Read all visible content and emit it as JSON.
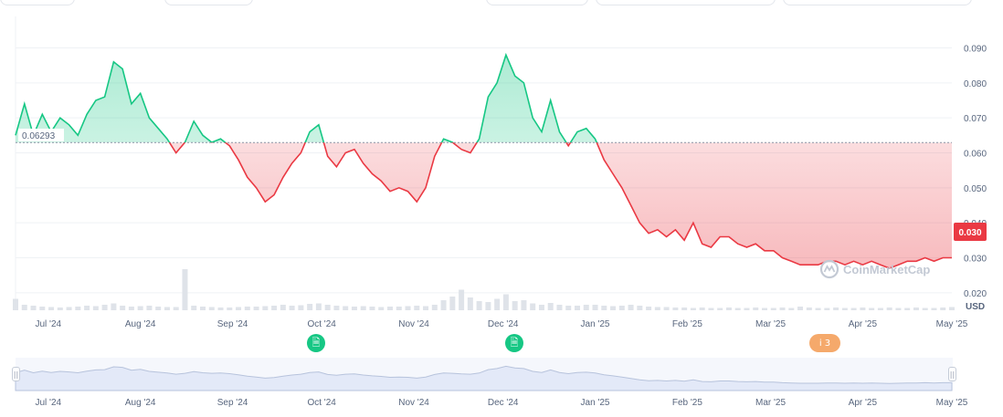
{
  "chart_data": {
    "type": "area",
    "currency": "USD",
    "baseline_label": "0.06293",
    "baseline": 0.06293,
    "current_price_label": "0.030",
    "current_price": 0.03,
    "ylim": [
      0.015,
      0.099
    ],
    "y_ticks": [
      "0.090",
      "0.080",
      "0.070",
      "0.060",
      "0.050",
      "0.040",
      "0.030",
      "0.020"
    ],
    "y_tick_values": [
      0.09,
      0.08,
      0.07,
      0.06,
      0.05,
      0.04,
      0.03,
      0.02
    ],
    "x_ticks": [
      "Jul '24",
      "Aug '24",
      "Sep '24",
      "Oct '24",
      "Nov '24",
      "Dec '24",
      "Jan '25",
      "Feb '25",
      "Mar '25",
      "Apr '25",
      "May '25"
    ],
    "x_range": [
      "2024-06-20",
      "2025-05-01"
    ],
    "x": [
      "2024-06-20",
      "2024-06-23",
      "2024-06-26",
      "2024-06-29",
      "2024-07-02",
      "2024-07-05",
      "2024-07-08",
      "2024-07-11",
      "2024-07-14",
      "2024-07-17",
      "2024-07-20",
      "2024-07-23",
      "2024-07-26",
      "2024-07-29",
      "2024-08-01",
      "2024-08-04",
      "2024-08-07",
      "2024-08-10",
      "2024-08-13",
      "2024-08-16",
      "2024-08-19",
      "2024-08-22",
      "2024-08-25",
      "2024-08-28",
      "2024-08-31",
      "2024-09-03",
      "2024-09-06",
      "2024-09-09",
      "2024-09-12",
      "2024-09-15",
      "2024-09-18",
      "2024-09-21",
      "2024-09-24",
      "2024-09-27",
      "2024-09-30",
      "2024-10-03",
      "2024-10-06",
      "2024-10-09",
      "2024-10-12",
      "2024-10-15",
      "2024-10-18",
      "2024-10-21",
      "2024-10-24",
      "2024-10-27",
      "2024-10-30",
      "2024-11-02",
      "2024-11-05",
      "2024-11-08",
      "2024-11-11",
      "2024-11-14",
      "2024-11-17",
      "2024-11-20",
      "2024-11-23",
      "2024-11-26",
      "2024-11-29",
      "2024-12-02",
      "2024-12-05",
      "2024-12-08",
      "2024-12-11",
      "2024-12-14",
      "2024-12-17",
      "2024-12-20",
      "2024-12-23",
      "2024-12-26",
      "2024-12-29",
      "2025-01-01",
      "2025-01-04",
      "2025-01-07",
      "2025-01-10",
      "2025-01-13",
      "2025-01-16",
      "2025-01-19",
      "2025-01-22",
      "2025-01-25",
      "2025-01-28",
      "2025-01-31",
      "2025-02-03",
      "2025-02-06",
      "2025-02-09",
      "2025-02-12",
      "2025-02-15",
      "2025-02-18",
      "2025-02-21",
      "2025-02-24",
      "2025-02-27",
      "2025-03-02",
      "2025-03-05",
      "2025-03-08",
      "2025-03-11",
      "2025-03-14",
      "2025-03-17",
      "2025-03-20",
      "2025-03-23",
      "2025-03-26",
      "2025-03-29",
      "2025-04-01",
      "2025-04-04",
      "2025-04-07",
      "2025-04-10",
      "2025-04-13",
      "2025-04-16",
      "2025-04-19",
      "2025-04-22",
      "2025-04-25",
      "2025-04-28",
      "2025-05-01"
    ],
    "values": [
      0.065,
      0.074,
      0.065,
      0.071,
      0.066,
      0.07,
      0.068,
      0.065,
      0.071,
      0.075,
      0.076,
      0.086,
      0.084,
      0.074,
      0.077,
      0.07,
      0.067,
      0.064,
      0.06,
      0.063,
      0.069,
      0.065,
      0.063,
      0.064,
      0.062,
      0.058,
      0.053,
      0.05,
      0.046,
      0.048,
      0.053,
      0.057,
      0.06,
      0.066,
      0.068,
      0.059,
      0.056,
      0.06,
      0.061,
      0.057,
      0.054,
      0.052,
      0.049,
      0.05,
      0.049,
      0.046,
      0.05,
      0.059,
      0.064,
      0.063,
      0.061,
      0.06,
      0.064,
      0.076,
      0.08,
      0.088,
      0.082,
      0.08,
      0.07,
      0.066,
      0.075,
      0.066,
      0.062,
      0.066,
      0.067,
      0.064,
      0.058,
      0.054,
      0.05,
      0.045,
      0.04,
      0.037,
      0.038,
      0.036,
      0.038,
      0.035,
      0.04,
      0.034,
      0.033,
      0.036,
      0.036,
      0.034,
      0.033,
      0.034,
      0.032,
      0.032,
      0.03,
      0.029,
      0.028,
      0.028,
      0.028,
      0.029,
      0.029,
      0.028,
      0.029,
      0.028,
      0.029,
      0.028,
      0.027,
      0.028,
      0.029,
      0.029,
      0.03,
      0.029,
      0.03,
      0.03
    ],
    "volume": [
      0.25,
      0.12,
      0.1,
      0.08,
      0.07,
      0.06,
      0.07,
      0.08,
      0.1,
      0.09,
      0.12,
      0.15,
      0.1,
      0.08,
      0.09,
      0.1,
      0.08,
      0.07,
      0.07,
      0.9,
      0.1,
      0.08,
      0.07,
      0.06,
      0.06,
      0.07,
      0.08,
      0.08,
      0.09,
      0.1,
      0.12,
      0.1,
      0.11,
      0.14,
      0.15,
      0.12,
      0.1,
      0.09,
      0.08,
      0.09,
      0.08,
      0.07,
      0.08,
      0.08,
      0.09,
      0.1,
      0.09,
      0.12,
      0.22,
      0.3,
      0.45,
      0.28,
      0.2,
      0.18,
      0.25,
      0.35,
      0.2,
      0.22,
      0.15,
      0.12,
      0.16,
      0.12,
      0.1,
      0.1,
      0.12,
      0.12,
      0.1,
      0.09,
      0.1,
      0.12,
      0.1,
      0.08,
      0.07,
      0.07,
      0.06,
      0.06,
      0.05,
      0.06,
      0.05,
      0.05,
      0.06,
      0.05,
      0.05,
      0.06,
      0.05,
      0.05,
      0.06,
      0.05,
      0.08,
      0.06,
      0.05,
      0.05,
      0.06,
      0.05,
      0.05,
      0.06,
      0.05,
      0.05,
      0.06,
      0.05,
      0.05,
      0.06,
      0.05,
      0.05,
      0.06,
      0.07
    ],
    "colors": {
      "up": "#16c784",
      "down": "#ea3943",
      "baseline": "#8a93a6",
      "grid": "#eff2f5",
      "volume": "#dfe3e9",
      "current_badge": "#ea3943",
      "navigator_fill": "#e3e9f8",
      "navigator_line": "#b7c3dc"
    }
  },
  "watermark": "CoinMarketCap",
  "events": [
    {
      "icon": "document-icon",
      "glyph": "🗎"
    },
    {
      "icon": "document-icon",
      "glyph": "🗎"
    },
    {
      "icon": "info-icon",
      "glyph": "i 3"
    }
  ],
  "navigator": {
    "x_ticks": [
      "Jul '24",
      "Aug '24",
      "Sep '24",
      "Oct '24",
      "Nov '24",
      "Dec '24",
      "Jan '25",
      "Feb '25",
      "Mar '25",
      "Apr '25",
      "May '25"
    ],
    "handle_glyph": "||"
  }
}
